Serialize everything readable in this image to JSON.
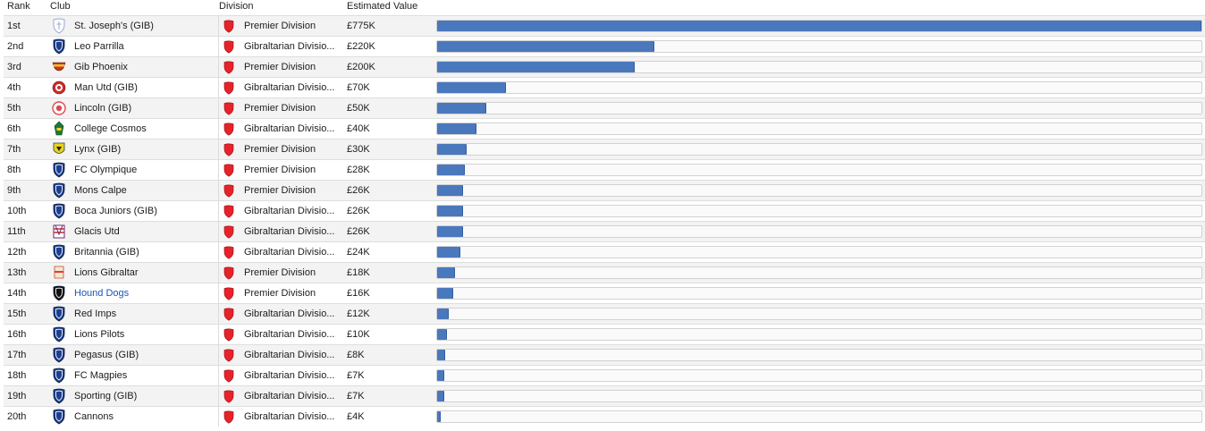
{
  "header": {
    "rank": "Rank",
    "club": "Club",
    "division": "Division",
    "estimated_value": "Estimated Value"
  },
  "rows": [
    {
      "rank": "1st",
      "club": "St. Joseph's (GIB)",
      "division": "Premier Division",
      "value": "£775K",
      "value_k": 775,
      "badge": "st-josephs-crest-icon",
      "badge_color": "#9aa7d6"
    },
    {
      "rank": "2nd",
      "club": "Leo Parrilla",
      "division": "Gibraltarian Divisio...",
      "value": "£220K",
      "value_k": 220,
      "badge": "blue-shield-icon",
      "badge_color": "#1d3f8f"
    },
    {
      "rank": "3rd",
      "club": "Gib Phoenix",
      "division": "Premier Division",
      "value": "£200K",
      "value_k": 200,
      "badge": "phoenix-crest-icon",
      "badge_color": "#c8371f"
    },
    {
      "rank": "4th",
      "club": "Man Utd (GIB)",
      "division": "Gibraltarian Divisio...",
      "value": "£70K",
      "value_k": 70,
      "badge": "man-utd-crest-icon",
      "badge_color": "#cc2a2a"
    },
    {
      "rank": "5th",
      "club": "Lincoln (GIB)",
      "division": "Premier Division",
      "value": "£50K",
      "value_k": 50,
      "badge": "lincoln-crest-icon",
      "badge_color": "#e0474f"
    },
    {
      "rank": "6th",
      "club": "College Cosmos",
      "division": "Gibraltarian Divisio...",
      "value": "£40K",
      "value_k": 40,
      "badge": "college-cosmos-crest-icon",
      "badge_color": "#1f7a36"
    },
    {
      "rank": "7th",
      "club": "Lynx (GIB)",
      "division": "Premier Division",
      "value": "£30K",
      "value_k": 30,
      "badge": "lynx-crest-icon",
      "badge_color": "#e8d21d"
    },
    {
      "rank": "8th",
      "club": "FC Olympique",
      "division": "Premier Division",
      "value": "£28K",
      "value_k": 28,
      "badge": "blue-shield-icon",
      "badge_color": "#1d3f8f"
    },
    {
      "rank": "9th",
      "club": "Mons Calpe",
      "division": "Premier Division",
      "value": "£26K",
      "value_k": 26,
      "badge": "blue-shield-icon",
      "badge_color": "#1d3f8f"
    },
    {
      "rank": "10th",
      "club": "Boca Juniors (GIB)",
      "division": "Gibraltarian Divisio...",
      "value": "£26K",
      "value_k": 26,
      "badge": "blue-shield-icon",
      "badge_color": "#1d3f8f"
    },
    {
      "rank": "11th",
      "club": "Glacis Utd",
      "division": "Gibraltarian Divisio...",
      "value": "£26K",
      "value_k": 26,
      "badge": "glacis-crest-icon",
      "badge_color": "#6b2f72"
    },
    {
      "rank": "12th",
      "club": "Britannia (GIB)",
      "division": "Gibraltarian Divisio...",
      "value": "£24K",
      "value_k": 24,
      "badge": "blue-shield-icon",
      "badge_color": "#1d3f8f"
    },
    {
      "rank": "13th",
      "club": "Lions Gibraltar",
      "division": "Premier Division",
      "value": "£18K",
      "value_k": 18,
      "badge": "lions-gibraltar-crest-icon",
      "badge_color": "#d0442a"
    },
    {
      "rank": "14th",
      "club": "Hound Dogs",
      "division": "Premier Division",
      "value": "£16K",
      "value_k": 16,
      "badge": "black-shield-icon",
      "badge_color": "#111111",
      "link": true
    },
    {
      "rank": "15th",
      "club": "Red Imps",
      "division": "Gibraltarian Divisio...",
      "value": "£12K",
      "value_k": 12,
      "badge": "blue-shield-icon",
      "badge_color": "#1d3f8f"
    },
    {
      "rank": "16th",
      "club": "Lions Pilots",
      "division": "Gibraltarian Divisio...",
      "value": "£10K",
      "value_k": 10,
      "badge": "blue-shield-icon",
      "badge_color": "#1d3f8f"
    },
    {
      "rank": "17th",
      "club": "Pegasus (GIB)",
      "division": "Gibraltarian Divisio...",
      "value": "£8K",
      "value_k": 8,
      "badge": "blue-shield-icon",
      "badge_color": "#1d3f8f"
    },
    {
      "rank": "18th",
      "club": "FC Magpies",
      "division": "Gibraltarian Divisio...",
      "value": "£7K",
      "value_k": 7,
      "badge": "blue-shield-icon",
      "badge_color": "#1d3f8f"
    },
    {
      "rank": "19th",
      "club": "Sporting (GIB)",
      "division": "Gibraltarian Divisio...",
      "value": "£7K",
      "value_k": 7,
      "badge": "blue-shield-icon",
      "badge_color": "#1d3f8f"
    },
    {
      "rank": "20th",
      "club": "Cannons",
      "division": "Gibraltarian Divisio...",
      "value": "£4K",
      "value_k": 4,
      "badge": "blue-shield-icon",
      "badge_color": "#1d3f8f"
    }
  ],
  "max_value_k": 775,
  "colors": {
    "bar_fill": "#4a78bd",
    "division_shield": "#e8222a",
    "link": "#1a56b5"
  },
  "division_icon": "red-shield-icon"
}
